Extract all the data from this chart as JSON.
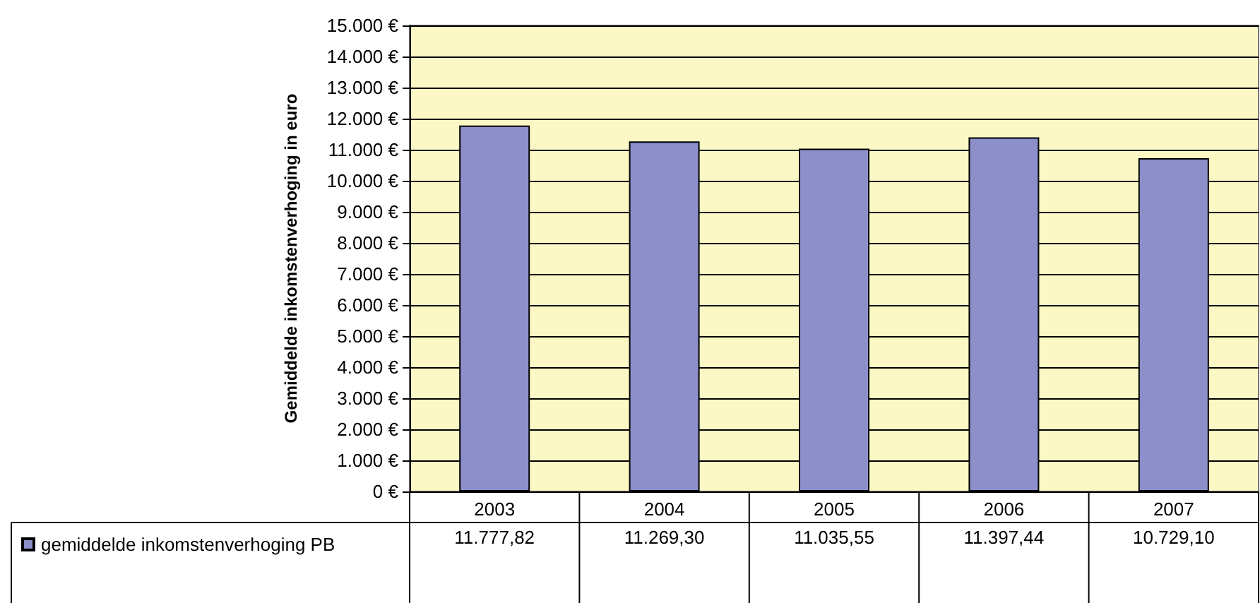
{
  "chart_data": {
    "type": "bar",
    "ylabel": "Gemiddelde inkomstenverhoging in euro",
    "categories": [
      "2003",
      "2004",
      "2005",
      "2006",
      "2007"
    ],
    "series": [
      {
        "name": "gemiddelde inkomstenverhoging PB",
        "color": "#8c8fc9",
        "values": [
          11777.82,
          11269.3,
          11035.55,
          11397.44,
          10729.1
        ],
        "value_labels": [
          "11.777,82",
          "11.269,30",
          "11.035,55",
          "11.397,44",
          "10.729,10"
        ]
      }
    ],
    "ylim": [
      0,
      15000
    ],
    "yticks": [
      {
        "value": 0,
        "label": "0 €"
      },
      {
        "value": 1000,
        "label": "1.000 €"
      },
      {
        "value": 2000,
        "label": "2.000 €"
      },
      {
        "value": 3000,
        "label": "3.000 €"
      },
      {
        "value": 4000,
        "label": "4.000 €"
      },
      {
        "value": 5000,
        "label": "5.000 €"
      },
      {
        "value": 6000,
        "label": "6.000 €"
      },
      {
        "value": 7000,
        "label": "7.000 €"
      },
      {
        "value": 8000,
        "label": "8.000 €"
      },
      {
        "value": 9000,
        "label": "9.000 €"
      },
      {
        "value": 10000,
        "label": "10.000 €"
      },
      {
        "value": 11000,
        "label": "11.000 €"
      },
      {
        "value": 12000,
        "label": "12.000 €"
      },
      {
        "value": 13000,
        "label": "13.000 €"
      },
      {
        "value": 14000,
        "label": "14.000 €"
      },
      {
        "value": 15000,
        "label": "15.000 €"
      }
    ],
    "grid": "y",
    "legend": "bottom left"
  }
}
